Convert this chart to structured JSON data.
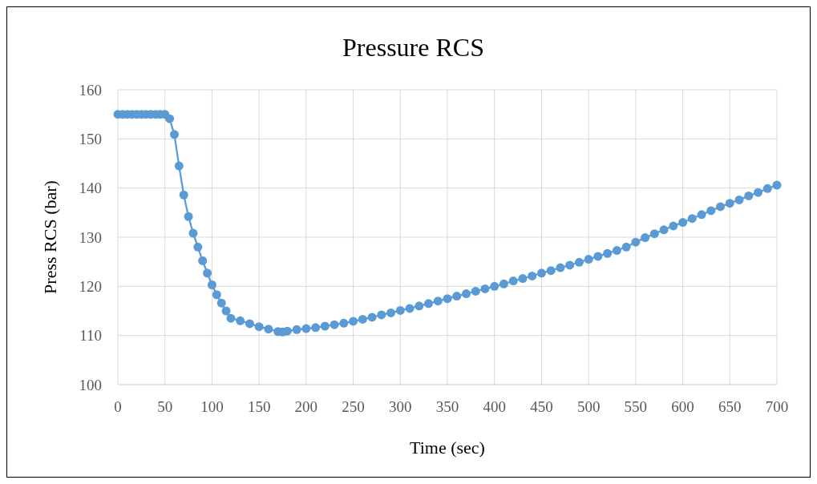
{
  "chart_data": {
    "type": "line",
    "title": "Pressure RCS",
    "xlabel": "Time (sec)",
    "ylabel": "Press RCS (bar)",
    "xlim": [
      0,
      700
    ],
    "xticks": [
      0,
      50,
      100,
      150,
      200,
      250,
      300,
      350,
      400,
      450,
      500,
      550,
      600,
      650,
      700
    ],
    "ylim": [
      100,
      160
    ],
    "yticks": [
      100,
      110,
      120,
      130,
      140,
      150,
      160
    ],
    "grid": true,
    "marker": "circle",
    "line_style": "solid",
    "series": [
      {
        "color": "#5b9bd5",
        "x": [
          0,
          5,
          10,
          15,
          20,
          25,
          30,
          35,
          40,
          45,
          50,
          55,
          60,
          65,
          70,
          75,
          80,
          85,
          90,
          95,
          100,
          105,
          110,
          115,
          120,
          130,
          140,
          150,
          160,
          170,
          175,
          180,
          190,
          200,
          210,
          220,
          230,
          240,
          250,
          260,
          270,
          280,
          290,
          300,
          310,
          320,
          330,
          340,
          350,
          360,
          370,
          380,
          390,
          400,
          410,
          420,
          430,
          440,
          450,
          460,
          470,
          480,
          490,
          500,
          510,
          520,
          530,
          540,
          550,
          560,
          570,
          580,
          590,
          600,
          610,
          620,
          630,
          640,
          650,
          660,
          670,
          680,
          690,
          700
        ],
        "values": [
          155,
          155,
          155,
          155,
          155,
          155,
          155,
          155,
          155,
          155,
          155,
          154.1,
          150.9,
          144.5,
          138.6,
          134.2,
          130.8,
          128,
          125.2,
          122.7,
          120.3,
          118.3,
          116.6,
          115,
          113.5,
          113,
          112.4,
          111.8,
          111.3,
          110.8,
          110.7,
          110.9,
          111.2,
          111.4,
          111.6,
          111.9,
          112.2,
          112.5,
          112.9,
          113.3,
          113.7,
          114.2,
          114.6,
          115.1,
          115.5,
          116,
          116.5,
          117,
          117.5,
          118,
          118.5,
          119,
          119.5,
          120,
          120.5,
          121.1,
          121.6,
          122.1,
          122.7,
          123.2,
          123.8,
          124.3,
          124.9,
          125.5,
          126.1,
          126.7,
          127.3,
          128,
          129,
          129.9,
          130.7,
          131.5,
          132.3,
          133,
          133.8,
          134.6,
          135.4,
          136.2,
          136.9,
          137.6,
          138.4,
          139.1,
          139.9,
          140.6
        ]
      }
    ]
  }
}
